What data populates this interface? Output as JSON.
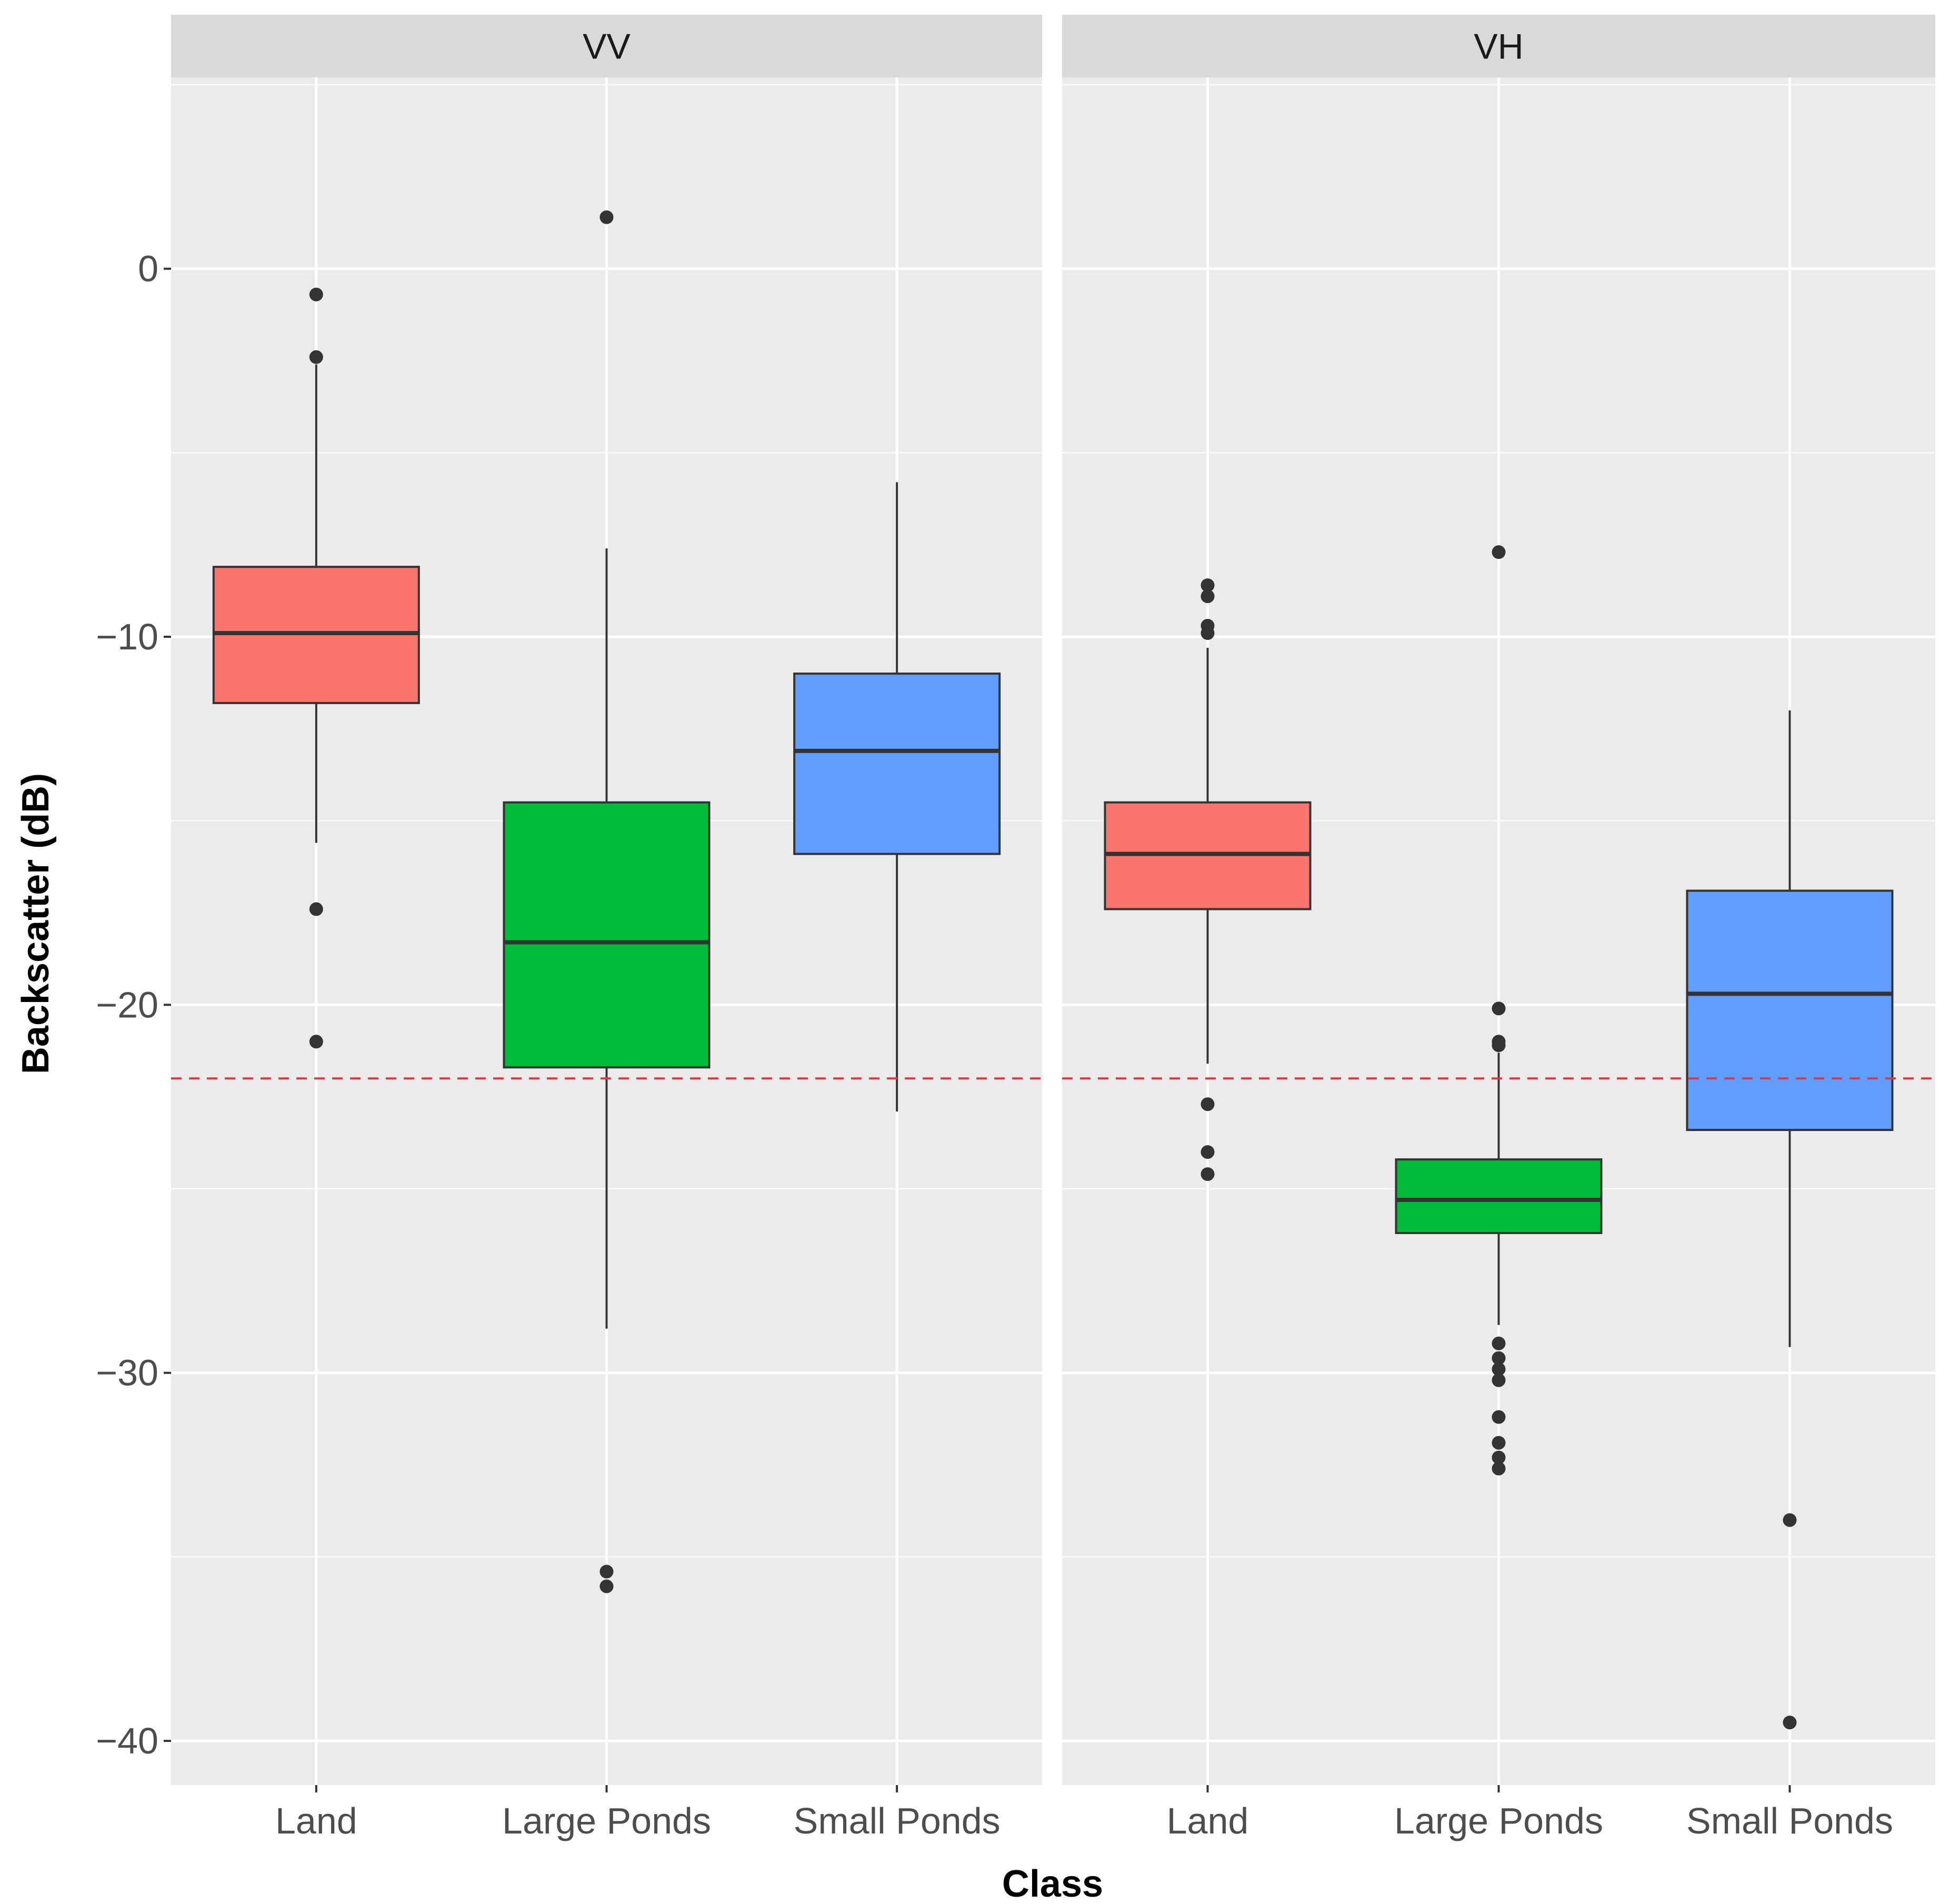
{
  "chart_data": {
    "type": "boxplot",
    "xlabel": "Class",
    "ylabel": "Backscatter (dB)",
    "ylim": [
      -41.2,
      5.2
    ],
    "yticks": [
      0,
      -10,
      -20,
      -30,
      -40
    ],
    "ytick_labels": [
      "0",
      "-10",
      "-20",
      "-30",
      "-40"
    ],
    "categories": [
      "Land",
      "Large Ponds",
      "Small Ponds"
    ],
    "threshold": {
      "value": -22,
      "color": "#e3344a",
      "style": "dashed"
    },
    "colors": {
      "Land": "#f8766d",
      "Large Ponds": "#00ba38",
      "Small Ponds": "#619cff"
    },
    "panels": [
      {
        "label": "VV",
        "boxes": [
          {
            "category": "Land",
            "q1": -11.8,
            "median": -9.9,
            "q3": -8.1,
            "whisker_low": -15.6,
            "whisker_high": -2.6,
            "outliers": [
              -0.7,
              -2.4,
              -17.4,
              -21.0
            ]
          },
          {
            "category": "Large Ponds",
            "q1": -21.7,
            "median": -18.3,
            "q3": -14.5,
            "whisker_low": -28.8,
            "whisker_high": -7.6,
            "outliers": [
              1.4,
              -35.4,
              -35.8
            ]
          },
          {
            "category": "Small Ponds",
            "q1": -15.9,
            "median": -13.1,
            "q3": -11.0,
            "whisker_low": -22.9,
            "whisker_high": -5.8,
            "outliers": []
          }
        ]
      },
      {
        "label": "VH",
        "boxes": [
          {
            "category": "Land",
            "q1": -17.4,
            "median": -15.9,
            "q3": -14.5,
            "whisker_low": -21.6,
            "whisker_high": -10.3,
            "outliers": [
              -8.6,
              -8.9,
              -9.7,
              -9.9,
              -22.7,
              -24.0,
              -24.6
            ]
          },
          {
            "category": "Large Ponds",
            "q1": -26.2,
            "median": -25.3,
            "q3": -24.2,
            "whisker_low": -28.7,
            "whisker_high": -21.3,
            "outliers": [
              -7.7,
              -20.1,
              -21.0,
              -21.1,
              -29.2,
              -29.6,
              -29.9,
              -30.2,
              -31.2,
              -31.9,
              -32.3,
              -32.6
            ]
          },
          {
            "category": "Small Ponds",
            "q1": -23.4,
            "median": -19.7,
            "q3": -16.9,
            "whisker_low": -29.3,
            "whisker_high": -12.0,
            "outliers": [
              -34.0,
              -39.5
            ]
          }
        ]
      }
    ]
  }
}
